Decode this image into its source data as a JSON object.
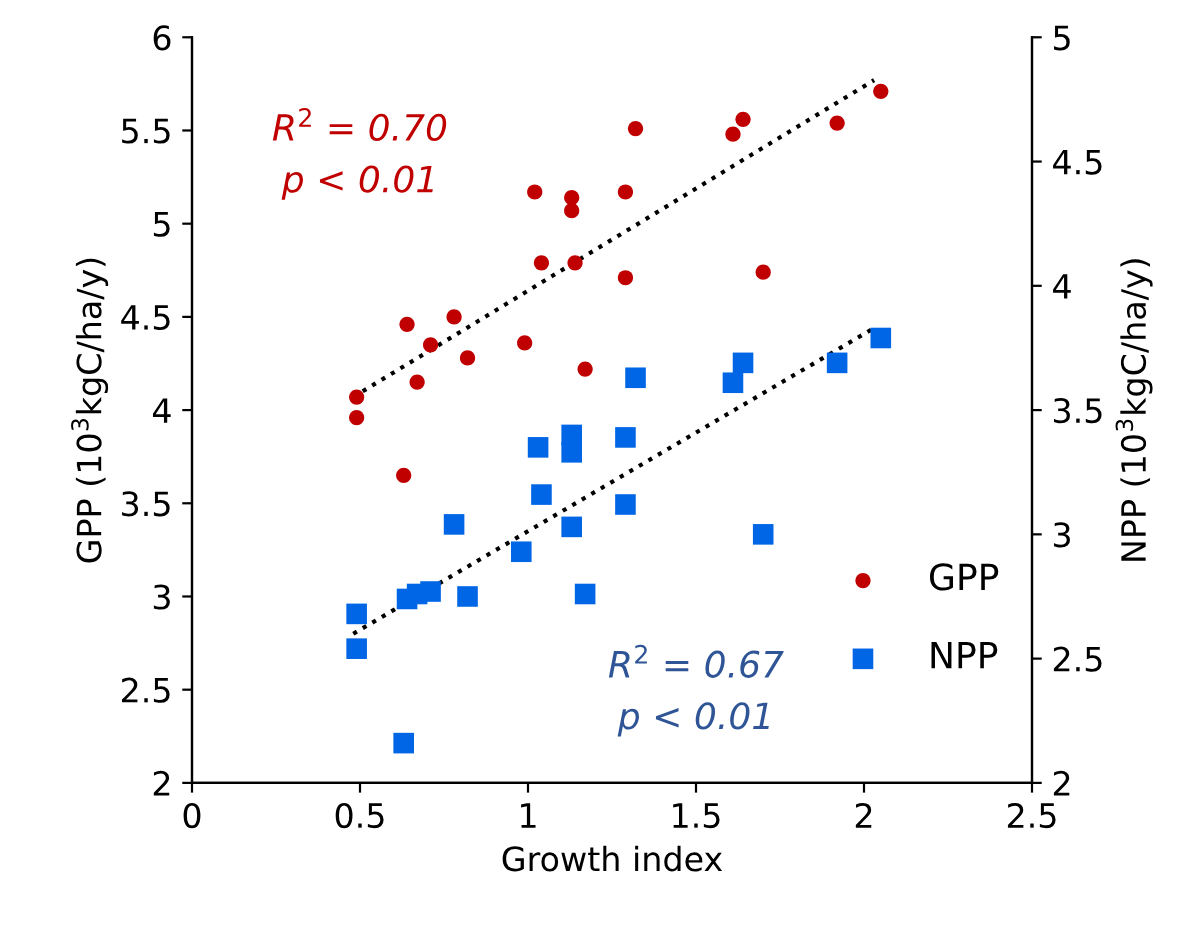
{
  "chart_data": {
    "type": "scatter",
    "xlabel": "Growth index",
    "ylabel": "GPP (10$^{3}$kgC/ha/y)",
    "y2label": "NPP (10$^{3}$kgC/ha/y)",
    "xlim": [
      0,
      2.5
    ],
    "xticks": [
      0,
      0.5,
      1,
      1.5,
      2,
      2.5
    ],
    "ylim": [
      2,
      6
    ],
    "yticks": [
      2,
      2.5,
      3,
      3.5,
      4,
      4.5,
      5,
      5.5,
      6
    ],
    "y2lim": [
      2,
      5
    ],
    "y2ticks": [
      2,
      2.5,
      3,
      3.5,
      4,
      4.5,
      5
    ],
    "grid": false,
    "legend": "bottom right",
    "annotations": [
      "R$^{2}$ = 0.70\np < 0.01",
      "R$^{2}$ = 0.67\np < 0.01"
    ],
    "series": [
      {
        "name": "GPP",
        "color": "#c00000",
        "marker": "circle",
        "x": [
          0.49,
          0.49,
          0.64,
          0.63,
          0.67,
          0.71,
          0.78,
          0.82,
          0.99,
          1.02,
          1.04,
          1.13,
          1.13,
          1.14,
          1.17,
          1.32,
          1.29,
          1.29,
          1.61,
          1.64,
          1.7,
          1.92,
          2.05
        ],
        "values": [
          4.07,
          3.96,
          4.46,
          3.65,
          4.15,
          4.35,
          4.5,
          4.28,
          4.36,
          5.17,
          4.79,
          5.14,
          5.07,
          4.79,
          4.22,
          5.51,
          5.17,
          4.71,
          5.48,
          5.56,
          4.74,
          5.54,
          5.71
        ]
      },
      {
        "name": "NPP",
        "axis": "y2",
        "color": "#0066e6",
        "marker": "square",
        "x": [
          0.49,
          0.49,
          0.63,
          0.64,
          0.67,
          0.71,
          0.78,
          0.82,
          0.98,
          1.03,
          1.04,
          1.13,
          1.13,
          1.13,
          1.17,
          1.32,
          1.29,
          1.29,
          1.61,
          1.64,
          1.7,
          1.92,
          2.05
        ],
        "values": [
          2.68,
          2.54,
          2.16,
          2.74,
          2.76,
          2.77,
          3.04,
          2.75,
          2.93,
          3.35,
          3.16,
          3.4,
          3.33,
          3.03,
          2.76,
          3.63,
          3.39,
          3.12,
          3.61,
          3.69,
          3.0,
          3.69,
          3.79
        ]
      },
      {
        "type": "line",
        "color": "#000000",
        "line_style": "dotted",
        "marker": "none",
        "x": [
          0.48,
          2.03
        ],
        "values": [
          4.07,
          5.77
        ]
      },
      {
        "type": "line",
        "axis": "y2",
        "color": "#000000",
        "line_style": "dotted",
        "marker": "none",
        "x": [
          0.48,
          2.03
        ],
        "values": [
          2.6,
          3.83
        ]
      }
    ]
  }
}
